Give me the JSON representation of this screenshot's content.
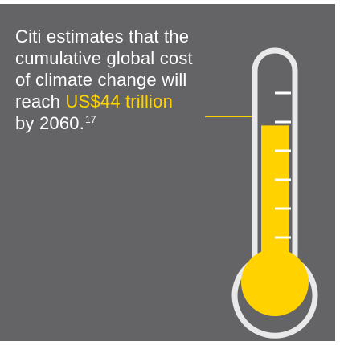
{
  "statement": {
    "line1": "Citi estimates that the",
    "line2": "cumulative global cost",
    "line3": "of climate change will",
    "line4_prefix": "reach ",
    "highlight": "US$44 trillion",
    "line5": "by 2060.",
    "footnote": "17"
  },
  "thermometer": {
    "icon": "thermometer-icon",
    "fill_level": 0.7,
    "tick_count": 6
  },
  "colors": {
    "background": "#646466",
    "accent": "#ffd200",
    "text": "#ffffff"
  }
}
